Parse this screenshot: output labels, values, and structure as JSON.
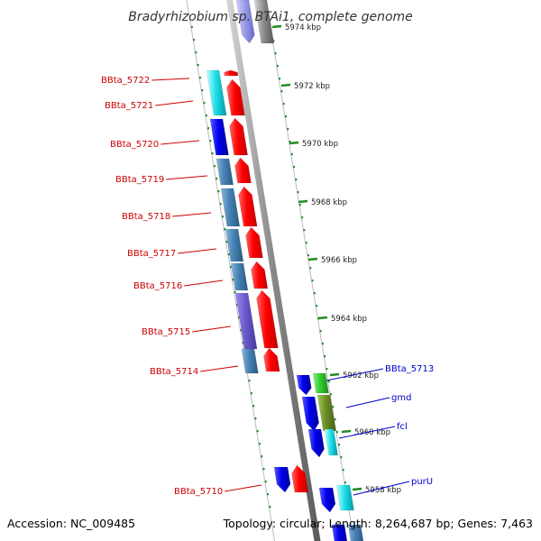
{
  "title": "Bradyrhizobium sp. BTAi1, complete genome",
  "footer": {
    "accession": "Accession: NC_009485",
    "topology": "Topology: circular; Length: 8,264,687 bp; Genes: 7,463"
  },
  "scale_labels": [
    "5974 kbp",
    "5972 kbp",
    "5970 kbp",
    "5968 kbp",
    "5966 kbp",
    "5964 kbp",
    "5962 kbp",
    "5960 kbp",
    "5958 kbp"
  ],
  "left_genes": [
    "BBta_5722",
    "BBta_5721",
    "BBta_5720",
    "BBta_5719",
    "BBta_5718",
    "BBta_5717",
    "BBta_5716",
    "BBta_5715",
    "BBta_5714",
    "BBta_5710"
  ],
  "right_genes": [
    "BBta_5713",
    "gmd",
    "fcl",
    "purU"
  ],
  "colors": {
    "tick": "#228b22",
    "label_left": "#cc0000",
    "label_right": "#0000cc",
    "gene_red": "#ff0000",
    "gene_blue": "#0000ee",
    "gene_steel": "#4682b4",
    "gene_cyan": "#00ced1",
    "gene_purple": "#6a5acd",
    "gene_green": "#32cd32",
    "gene_olive": "#6b8e23",
    "backbone": "#888888"
  }
}
